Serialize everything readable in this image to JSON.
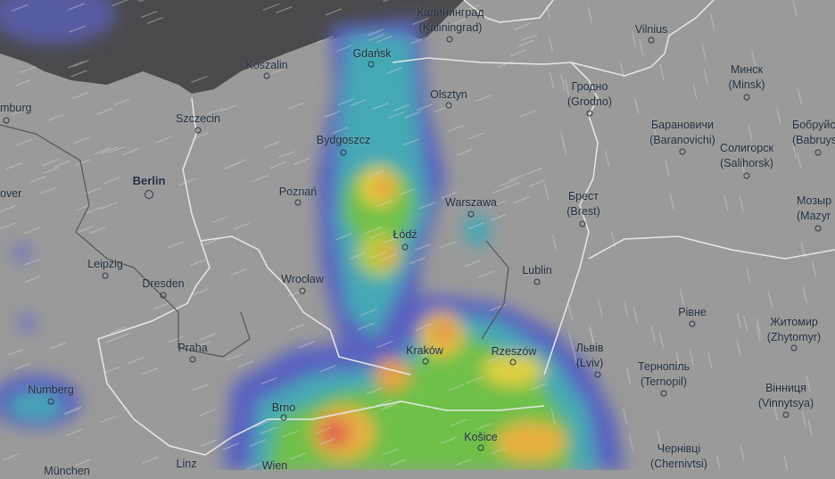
{
  "map": {
    "layer": "precipitation",
    "colors": {
      "land": "#9a9a9a",
      "sea": "#4a4a4c",
      "light": "#6a6fc0",
      "low": "#4aa8b8",
      "mid": "#6cc04a",
      "high": "#e8d040",
      "heavy": "#e07040",
      "extreme": "#d03a6a"
    },
    "cities": [
      {
        "name": "Калининград",
        "alt": "(Kaliningrad)"
      },
      {
        "name": "Vilnius"
      },
      {
        "name": "Gdańsk"
      },
      {
        "name": "Koszalin"
      },
      {
        "name": "Минск",
        "alt": "(Minsk)"
      },
      {
        "name": "Olsztyn"
      },
      {
        "name": "Гродно",
        "alt": "(Grodno)"
      },
      {
        "name": "mburg"
      },
      {
        "name": "Szczecin"
      },
      {
        "name": "Барановичи",
        "alt": "(Baranovichi)"
      },
      {
        "name": "Бобруйс",
        "alt": "(Babruys"
      },
      {
        "name": "Солигорск",
        "alt": "(Salihorsk)"
      },
      {
        "name": "Bydgoszcz"
      },
      {
        "name": "Berlin"
      },
      {
        "name": "over"
      },
      {
        "name": "Poznań"
      },
      {
        "name": "Warszawa"
      },
      {
        "name": "Брест",
        "alt": "(Brest)"
      },
      {
        "name": "Мозыр",
        "alt": "(Mazyr"
      },
      {
        "name": "Łódź"
      },
      {
        "name": "Leipzig"
      },
      {
        "name": "Lublin"
      },
      {
        "name": "Wrocław"
      },
      {
        "name": "Dresden"
      },
      {
        "name": "Рівне"
      },
      {
        "name": "Житомир",
        "alt": "(Zhytomyr)"
      },
      {
        "name": "Praha"
      },
      {
        "name": "Kraków"
      },
      {
        "name": "Rzeszów"
      },
      {
        "name": "Львів",
        "alt": "(Lviv)"
      },
      {
        "name": "Тернопіль",
        "alt": "(Ternopil)"
      },
      {
        "name": "Numberg"
      },
      {
        "name": "Вінниця",
        "alt": "(Vinnytsya)"
      },
      {
        "name": "Brno"
      },
      {
        "name": "Košice"
      },
      {
        "name": "Чернівці",
        "alt": "(Chernivtsi)"
      },
      {
        "name": "Linz"
      },
      {
        "name": "Wien"
      },
      {
        "name": "München"
      }
    ]
  }
}
